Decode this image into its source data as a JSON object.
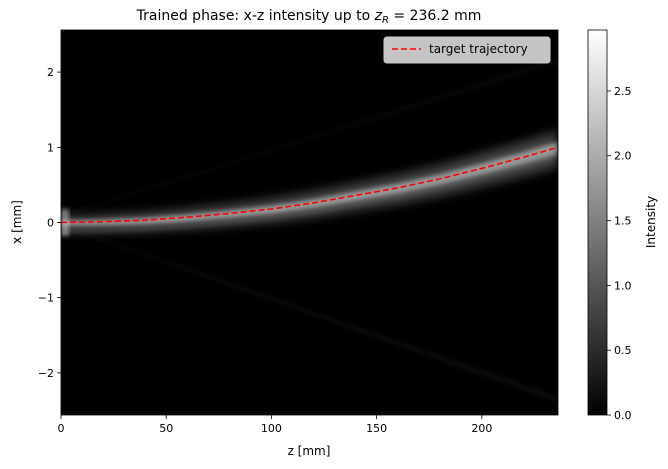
{
  "chart_data": {
    "type": "heatmap",
    "title_prefix": "Trained phase: x-z intensity up to ",
    "title_zsym": "z",
    "title_zsub": "R",
    "title_suffix": " = 236.2 mm",
    "xlabel": "z [mm]",
    "ylabel": "x [mm]",
    "xlim": [
      0,
      236.2
    ],
    "ylim": [
      -2.56,
      2.56
    ],
    "xticks": [
      0,
      50,
      100,
      150,
      200
    ],
    "xtick_labels": [
      "0",
      "50",
      "100",
      "150",
      "200"
    ],
    "yticks": [
      -2,
      -1,
      0,
      1,
      2
    ],
    "ytick_labels": [
      "−2",
      "−1",
      "0",
      "1",
      "2"
    ],
    "colorbar": {
      "label": "Intensity",
      "range": [
        0,
        2.97
      ],
      "ticks": [
        0,
        0.5,
        1.0,
        1.5,
        2.0,
        2.5
      ],
      "tick_labels": [
        "0.0",
        "0.5",
        "1.0",
        "1.5",
        "2.0",
        "2.5"
      ],
      "colormap": "gray"
    },
    "series": [
      {
        "name": "target trajectory",
        "style": "dashed",
        "color": "#ff0000",
        "x": [
          0,
          20,
          40,
          60,
          80,
          100,
          120,
          140,
          160,
          180,
          200,
          220,
          236.2
        ],
        "y": [
          0.0,
          0.01,
          0.03,
          0.07,
          0.12,
          0.18,
          0.26,
          0.36,
          0.46,
          0.58,
          0.72,
          0.87,
          1.0
        ]
      }
    ],
    "legend": {
      "placement": "top-right"
    }
  }
}
